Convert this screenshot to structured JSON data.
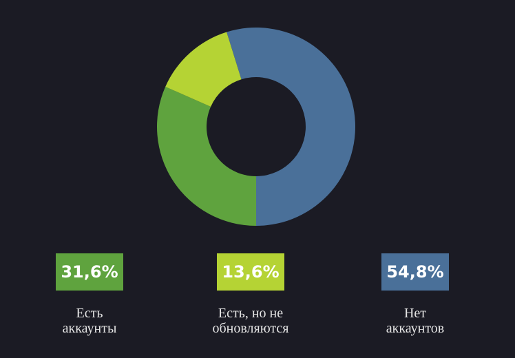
{
  "chart_data": {
    "type": "donut",
    "categories": [
      "Есть аккаунты",
      "Есть, но не обновляются",
      "Нет аккаунтов"
    ],
    "values": [
      31.6,
      13.6,
      54.8
    ],
    "value_labels": [
      "31,6%",
      "13,6%",
      "54,8%"
    ],
    "colors": [
      "#5fa33e",
      "#b5d334",
      "#4a7099"
    ]
  }
}
